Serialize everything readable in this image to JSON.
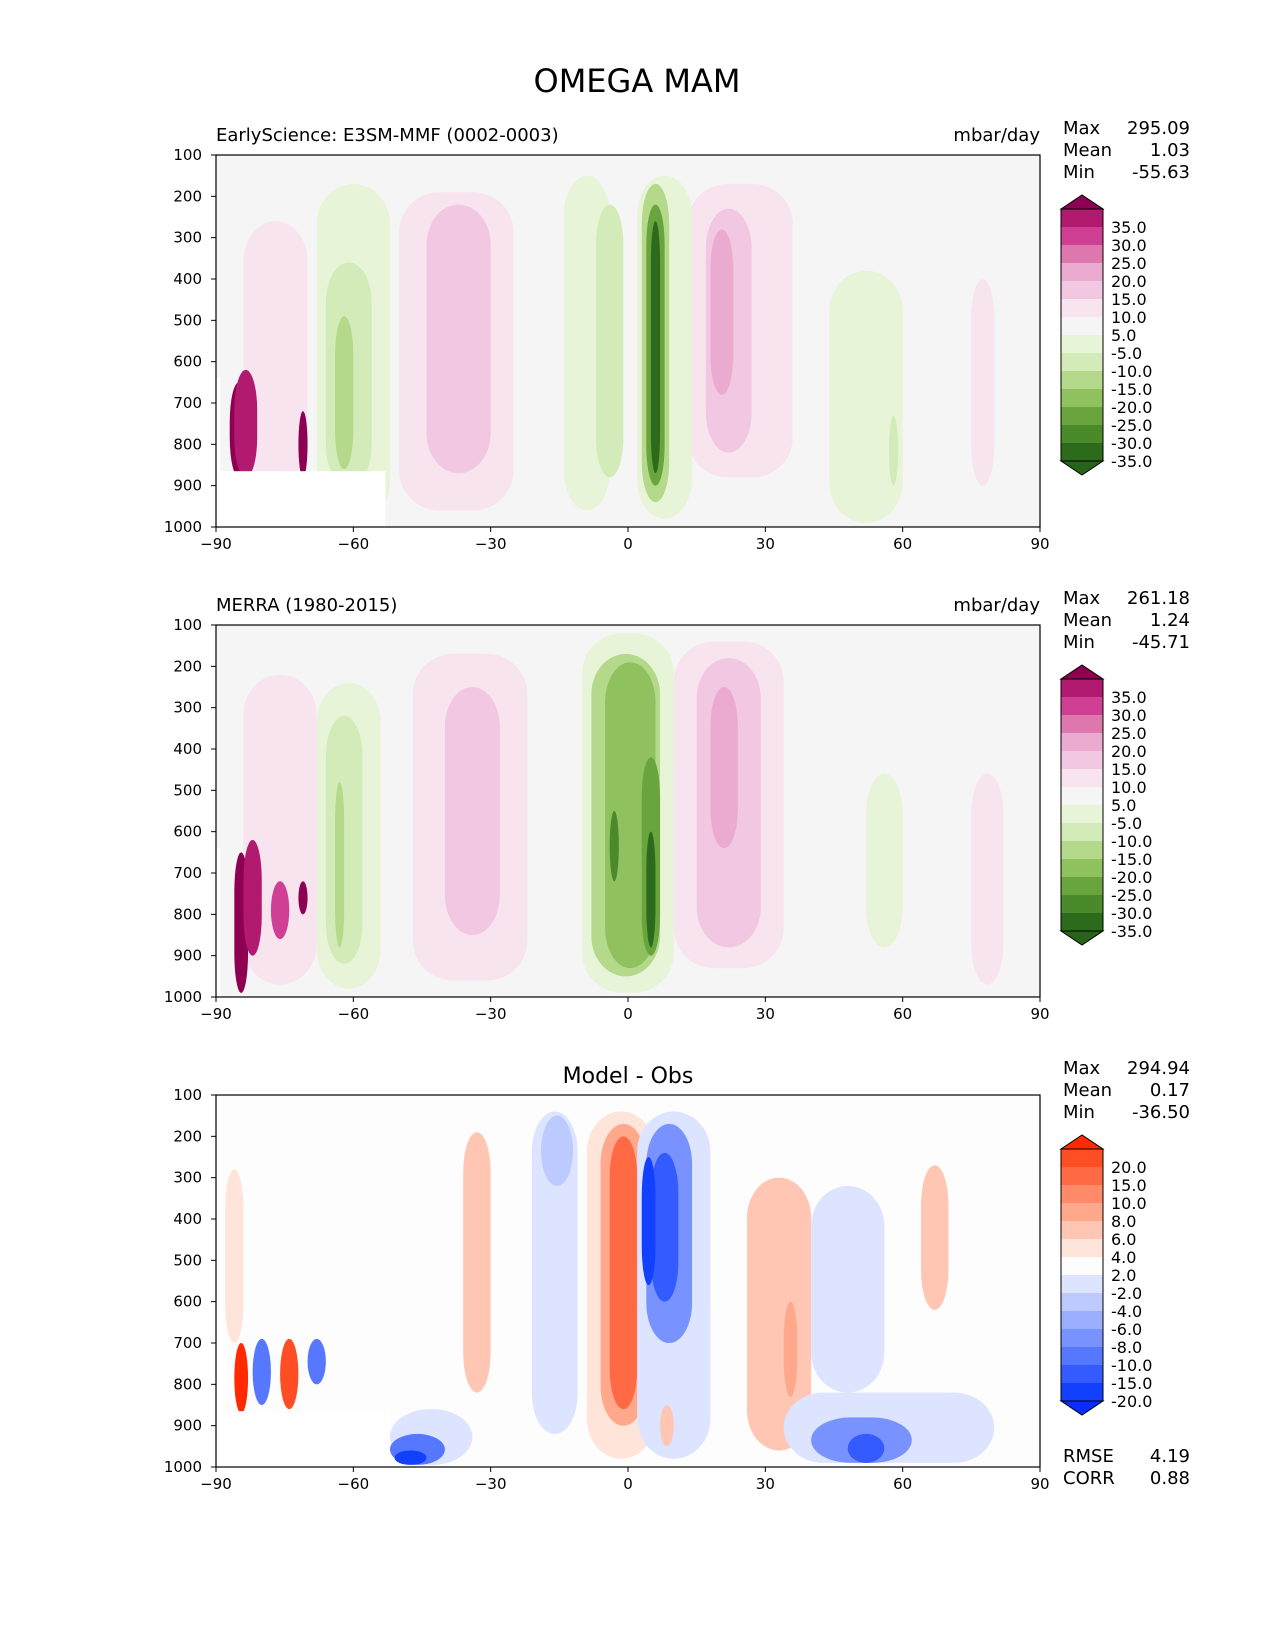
{
  "figure_title": "OMEGA MAM",
  "chart_data": [
    {
      "type": "heatmap",
      "panel": "test",
      "title": "EarlyScience: E3SM-MMF (0002-0003)",
      "units": "mbar/day",
      "stats": {
        "max_label": "Max",
        "max": "295.09",
        "mean_label": "Mean",
        "mean": "1.03",
        "min_label": "Min",
        "min": "-55.63"
      },
      "xlim": [
        -90,
        90
      ],
      "ylim": [
        1000,
        100
      ],
      "xticks": [
        "−90",
        "−60",
        "−30",
        "0",
        "30",
        "60",
        "90"
      ],
      "yticks": [
        "100",
        "200",
        "300",
        "400",
        "500",
        "600",
        "700",
        "800",
        "900",
        "1000"
      ],
      "colorbar": {
        "levels": [
          "35.0",
          "30.0",
          "25.0",
          "20.0",
          "15.0",
          "10.0",
          "5.0",
          "-5.0",
          "-10.0",
          "-15.0",
          "-20.0",
          "-25.0",
          "-30.0",
          "-35.0"
        ],
        "colors": [
          "#8e0152",
          "#b21a70",
          "#cf3f93",
          "#de77ae",
          "#ebaad0",
          "#f1c7e2",
          "#f8e4ef",
          "#f5f5f5",
          "#e8f4d8",
          "#d3ebb8",
          "#b4d98a",
          "#8fc15f",
          "#6aa43e",
          "#4a8a2b",
          "#2d6b1c",
          "#276419"
        ]
      }
    },
    {
      "type": "heatmap",
      "panel": "reference",
      "title": "MERRA (1980-2015)",
      "units": "mbar/day",
      "stats": {
        "max_label": "Max",
        "max": "261.18",
        "mean_label": "Mean",
        "mean": "1.24",
        "min_label": "Min",
        "min": "-45.71"
      },
      "xlim": [
        -90,
        90
      ],
      "ylim": [
        1000,
        100
      ],
      "xticks": [
        "−90",
        "−60",
        "−30",
        "0",
        "30",
        "60",
        "90"
      ],
      "yticks": [
        "100",
        "200",
        "300",
        "400",
        "500",
        "600",
        "700",
        "800",
        "900",
        "1000"
      ],
      "colorbar": {
        "levels": [
          "35.0",
          "30.0",
          "25.0",
          "20.0",
          "15.0",
          "10.0",
          "5.0",
          "-5.0",
          "-10.0",
          "-15.0",
          "-20.0",
          "-25.0",
          "-30.0",
          "-35.0"
        ],
        "colors": [
          "#8e0152",
          "#b21a70",
          "#cf3f93",
          "#de77ae",
          "#ebaad0",
          "#f1c7e2",
          "#f8e4ef",
          "#f5f5f5",
          "#e8f4d8",
          "#d3ebb8",
          "#b4d98a",
          "#8fc15f",
          "#6aa43e",
          "#4a8a2b",
          "#2d6b1c",
          "#276419"
        ]
      }
    },
    {
      "type": "heatmap",
      "panel": "difference",
      "title": "Model - Obs",
      "units": "",
      "stats": {
        "max_label": "Max",
        "max": "294.94",
        "mean_label": "Mean",
        "mean": "0.17",
        "min_label": "Min",
        "min": "-36.50"
      },
      "metrics": {
        "rmse_label": "RMSE",
        "rmse": "4.19",
        "corr_label": "CORR",
        "corr": "0.88"
      },
      "xlim": [
        -90,
        90
      ],
      "ylim": [
        1000,
        100
      ],
      "xticks": [
        "−90",
        "−60",
        "−30",
        "0",
        "30",
        "60",
        "90"
      ],
      "yticks": [
        "100",
        "200",
        "300",
        "400",
        "500",
        "600",
        "700",
        "800",
        "900",
        "1000"
      ],
      "colorbar": {
        "levels": [
          "20.0",
          "15.0",
          "10.0",
          "8.0",
          "6.0",
          "4.0",
          "2.0",
          "-2.0",
          "-4.0",
          "-6.0",
          "-8.0",
          "-10.0",
          "-15.0",
          "-20.0"
        ],
        "colors": [
          "#ff2a00",
          "#ff4d24",
          "#ff6a45",
          "#ff8a6a",
          "#ffa88c",
          "#ffc6b4",
          "#ffe4da",
          "#fdfdfd",
          "#dde4ff",
          "#bccaff",
          "#9aafff",
          "#7893ff",
          "#5677ff",
          "#345bff",
          "#1240ff",
          "#0a2dff"
        ]
      }
    }
  ]
}
